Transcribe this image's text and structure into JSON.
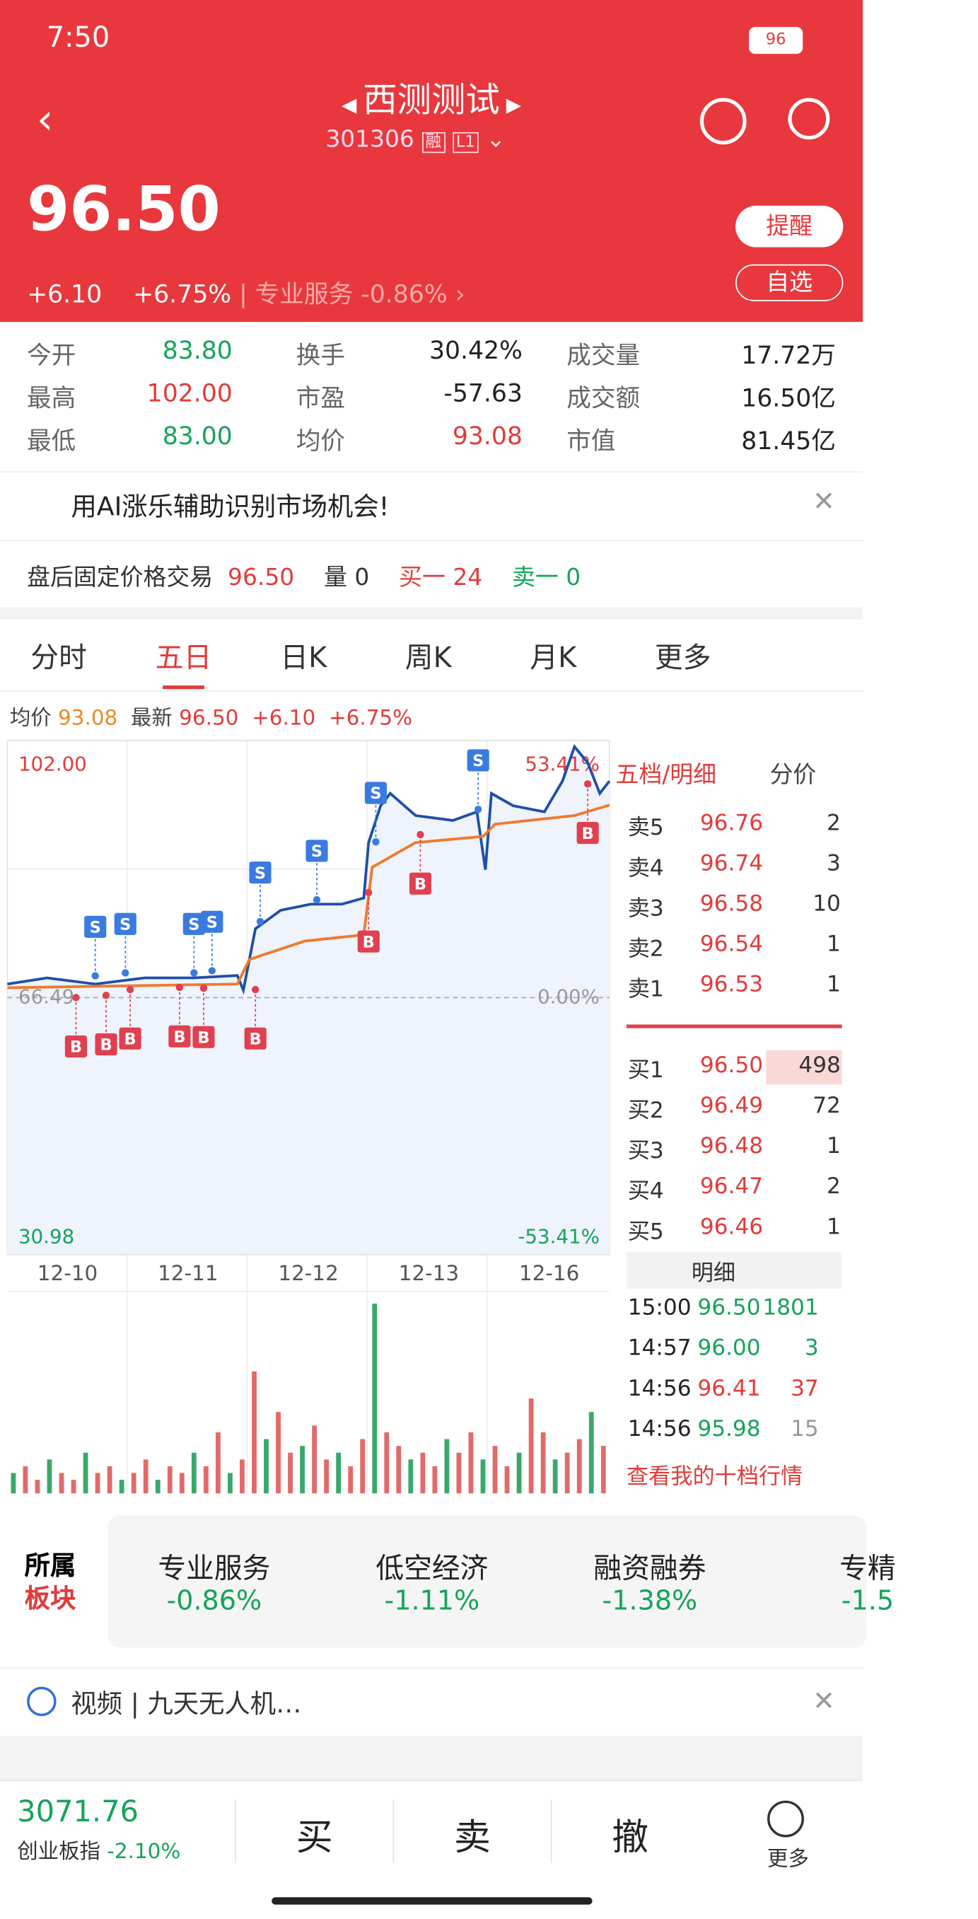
{
  "status": {
    "time": "7:50",
    "battery": "96"
  },
  "header": {
    "title": "西测测试",
    "code": "301306",
    "tags": [
      "融",
      "L1"
    ]
  },
  "quote": {
    "price": "96.50",
    "change": "+6.10",
    "pct": "+6.75%",
    "sector": "专业服务",
    "sector_pct": "-0.86%",
    "buttons": [
      "提醒",
      "自选"
    ]
  },
  "stats": [
    {
      "label": "今开",
      "value": "83.80",
      "tone": "down"
    },
    {
      "label": "换手",
      "value": "30.42%",
      "tone": "flat"
    },
    {
      "label": "成交量",
      "value": "17.72万",
      "tone": "flat"
    },
    {
      "label": "最高",
      "value": "102.00",
      "tone": "up"
    },
    {
      "label": "市盈",
      "value": "-57.63",
      "tone": "flat"
    },
    {
      "label": "成交额",
      "value": "16.50亿",
      "tone": "flat"
    },
    {
      "label": "最低",
      "value": "83.00",
      "tone": "down"
    },
    {
      "label": "均价",
      "value": "93.08",
      "tone": "up"
    },
    {
      "label": "市值",
      "value": "81.45亿",
      "tone": "flat"
    }
  ],
  "banner": "用AI涨乐辅助识别市场机会!",
  "after_hours": {
    "label": "盘后固定价格交易",
    "price": "96.50",
    "volume": "量 0",
    "bid": "买一 24",
    "ask": "卖一 0"
  },
  "tabs": {
    "items": [
      "分时",
      "五日",
      "日K",
      "周K",
      "月K",
      "更多"
    ],
    "active": 1
  },
  "chart_info": {
    "avg_label": "均价",
    "avg": "93.08",
    "latest_label": "最新",
    "latest": "96.50",
    "change": "+6.10",
    "pct": "+6.75%"
  },
  "chart": {
    "type": "line",
    "xlim": [
      0,
      5
    ],
    "ylim": [
      30.98,
      102
    ],
    "yticks": [
      {
        "value": 102,
        "label": "102.00"
      },
      {
        "value": 66.49,
        "label": "66.49"
      },
      {
        "value": 30.98,
        "label": "30.98"
      }
    ],
    "pct_ticks": [
      {
        "value": 102,
        "label": "53.41%"
      },
      {
        "value": 66.49,
        "label": "0.00%"
      },
      {
        "value": 30.98,
        "label": "-53.41%"
      }
    ],
    "dates": [
      "12-10",
      "12-11",
      "12-12",
      "12-13",
      "12-16"
    ],
    "series": [
      {
        "name": "price",
        "color": "#1f4fa8",
        "x": [
          0,
          0.33,
          0.73,
          1.14,
          1.55,
          1.91,
          1.96,
          2.06,
          2.27,
          2.52,
          2.78,
          2.96,
          3,
          3.1,
          3.18,
          3.39,
          3.7,
          3.9,
          3.97,
          4.02,
          4.2,
          4.46,
          4.61,
          4.71,
          4.82,
          4.92,
          5
        ],
        "values": [
          68.36,
          69.21,
          68.36,
          69.21,
          69.21,
          69.55,
          67.51,
          76,
          78.55,
          79.4,
          79.4,
          80.25,
          87.9,
          93,
          94.7,
          91.64,
          90.96,
          92.15,
          84.16,
          94.7,
          93,
          92.15,
          96.4,
          101.15,
          98.94,
          94.7,
          96.4
        ]
      },
      {
        "name": "avg",
        "color": "#f07a2a",
        "x": [
          0,
          1.91,
          2.01,
          2.47,
          2.96,
          3.03,
          3.39,
          3.95,
          4.05,
          4.71,
          5
        ],
        "values": [
          67.85,
          68.36,
          71.76,
          74.3,
          75.16,
          84.5,
          87.9,
          88.75,
          90.45,
          91.64,
          93.08
        ]
      }
    ],
    "markers": [
      {
        "label": "S",
        "x": 0.73,
        "value": 69.5
      },
      {
        "label": "S",
        "x": 0.98,
        "value": 69.9
      },
      {
        "label": "S",
        "x": 1.55,
        "value": 69.9
      },
      {
        "label": "S",
        "x": 1.7,
        "value": 70.2
      },
      {
        "label": "S",
        "x": 2.1,
        "value": 77
      },
      {
        "label": "S",
        "x": 2.57,
        "value": 80
      },
      {
        "label": "S",
        "x": 3.06,
        "value": 88
      },
      {
        "label": "S",
        "x": 3.91,
        "value": 92.5
      },
      {
        "label": "B",
        "x": 0.57,
        "value": 66.5
      },
      {
        "label": "B",
        "x": 0.82,
        "value": 66.8
      },
      {
        "label": "B",
        "x": 1.02,
        "value": 67.6
      },
      {
        "label": "B",
        "x": 1.43,
        "value": 67.9
      },
      {
        "label": "B",
        "x": 1.63,
        "value": 67.8
      },
      {
        "label": "B",
        "x": 2.06,
        "value": 67.6
      },
      {
        "label": "B",
        "x": 3,
        "value": 81
      },
      {
        "label": "B",
        "x": 3.43,
        "value": 89
      },
      {
        "label": "B",
        "x": 4.82,
        "value": 96
      }
    ],
    "volume": [
      3,
      4,
      2,
      5,
      3,
      2,
      6,
      3,
      4,
      2,
      3,
      5,
      2,
      4,
      3,
      6,
      4,
      9,
      3,
      5,
      18,
      8,
      12,
      6,
      7,
      10,
      5,
      6,
      4,
      8,
      28,
      9,
      7,
      5,
      6,
      4,
      8,
      6,
      9,
      5,
      7,
      4,
      6,
      14,
      9,
      5,
      6,
      8,
      12,
      7
    ]
  },
  "side_tabs": [
    "五档/明细",
    "分价"
  ],
  "asks": [
    [
      "卖5",
      "96.76",
      "2"
    ],
    [
      "卖4",
      "96.74",
      "3"
    ],
    [
      "卖3",
      "96.58",
      "10"
    ],
    [
      "卖2",
      "96.54",
      "1"
    ],
    [
      "卖1",
      "96.53",
      "1"
    ]
  ],
  "bids": [
    [
      "买1",
      "96.50",
      "498"
    ],
    [
      "买2",
      "96.49",
      "72"
    ],
    [
      "买3",
      "96.48",
      "1"
    ],
    [
      "买4",
      "96.47",
      "2"
    ],
    [
      "买5",
      "96.46",
      "1"
    ]
  ],
  "detail_label": "明细",
  "trades": [
    {
      "time": "15:00",
      "price": "96.50",
      "vol": "1801",
      "dir": "down"
    },
    {
      "time": "14:57",
      "price": "96.00",
      "vol": "3",
      "dir": "down"
    },
    {
      "time": "14:56",
      "price": "96.41",
      "vol": "37",
      "dir": "up"
    },
    {
      "time": "14:56",
      "price": "95.98",
      "vol": "15",
      "dir": "flat"
    }
  ],
  "book_link": "查看我的十档行情",
  "sectors": {
    "label": [
      "所属",
      "板块"
    ],
    "items": [
      {
        "name": "专业服务",
        "pct": "-0.86%"
      },
      {
        "name": "低空经济",
        "pct": "-1.11%"
      },
      {
        "name": "融资融券",
        "pct": "-1.38%"
      },
      {
        "name": "专精",
        "pct": "-1.5"
      }
    ]
  },
  "video": "视频 | 九天无人机…",
  "bottom": {
    "index": "3071.76",
    "index_name": "创业板指",
    "index_pct": "-2.10%",
    "actions": [
      "买",
      "卖",
      "撤",
      "更多"
    ]
  }
}
